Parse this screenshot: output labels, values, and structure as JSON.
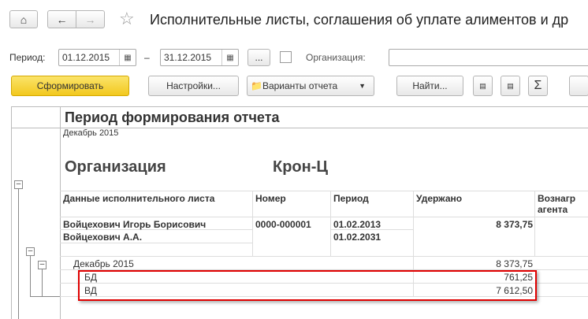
{
  "header": {
    "title": "Исполнительные листы, соглашения об уплате алиментов и др"
  },
  "filters": {
    "period_label": "Период:",
    "date_from": "01.12.2015",
    "dash": "–",
    "date_to": "31.12.2015",
    "more_label": "...",
    "org_label": "Организация:",
    "org_value": ""
  },
  "toolbar": {
    "generate": "Сформировать",
    "settings": "Настройки...",
    "variants": "Варианты отчета",
    "find": "Найти..."
  },
  "report": {
    "section_title": "Период формирования отчета",
    "period_value": "Декабрь 2015",
    "org_label": "Организация",
    "org_name": "Крон-Ц",
    "columns": [
      "Данные исполнительного листа",
      "Номер",
      "Период",
      "Удержано",
      "Вознагр агента"
    ],
    "rows": [
      {
        "data": "Войцехович Игорь Борисович",
        "number": "0000-000001",
        "period": "01.02.2013",
        "withheld": "8 373,75"
      },
      {
        "data": "Войцехович А.А.",
        "period": "01.02.2031"
      }
    ],
    "group": {
      "label": "Декабрь 2015",
      "withheld": "8 373,75"
    },
    "subrows": [
      {
        "label": "БД",
        "withheld": "761,25"
      },
      {
        "label": "ВД",
        "withheld": "7 612,50"
      }
    ]
  },
  "colors": {
    "generate_button": "#f5d230",
    "highlight": "#e00000"
  }
}
